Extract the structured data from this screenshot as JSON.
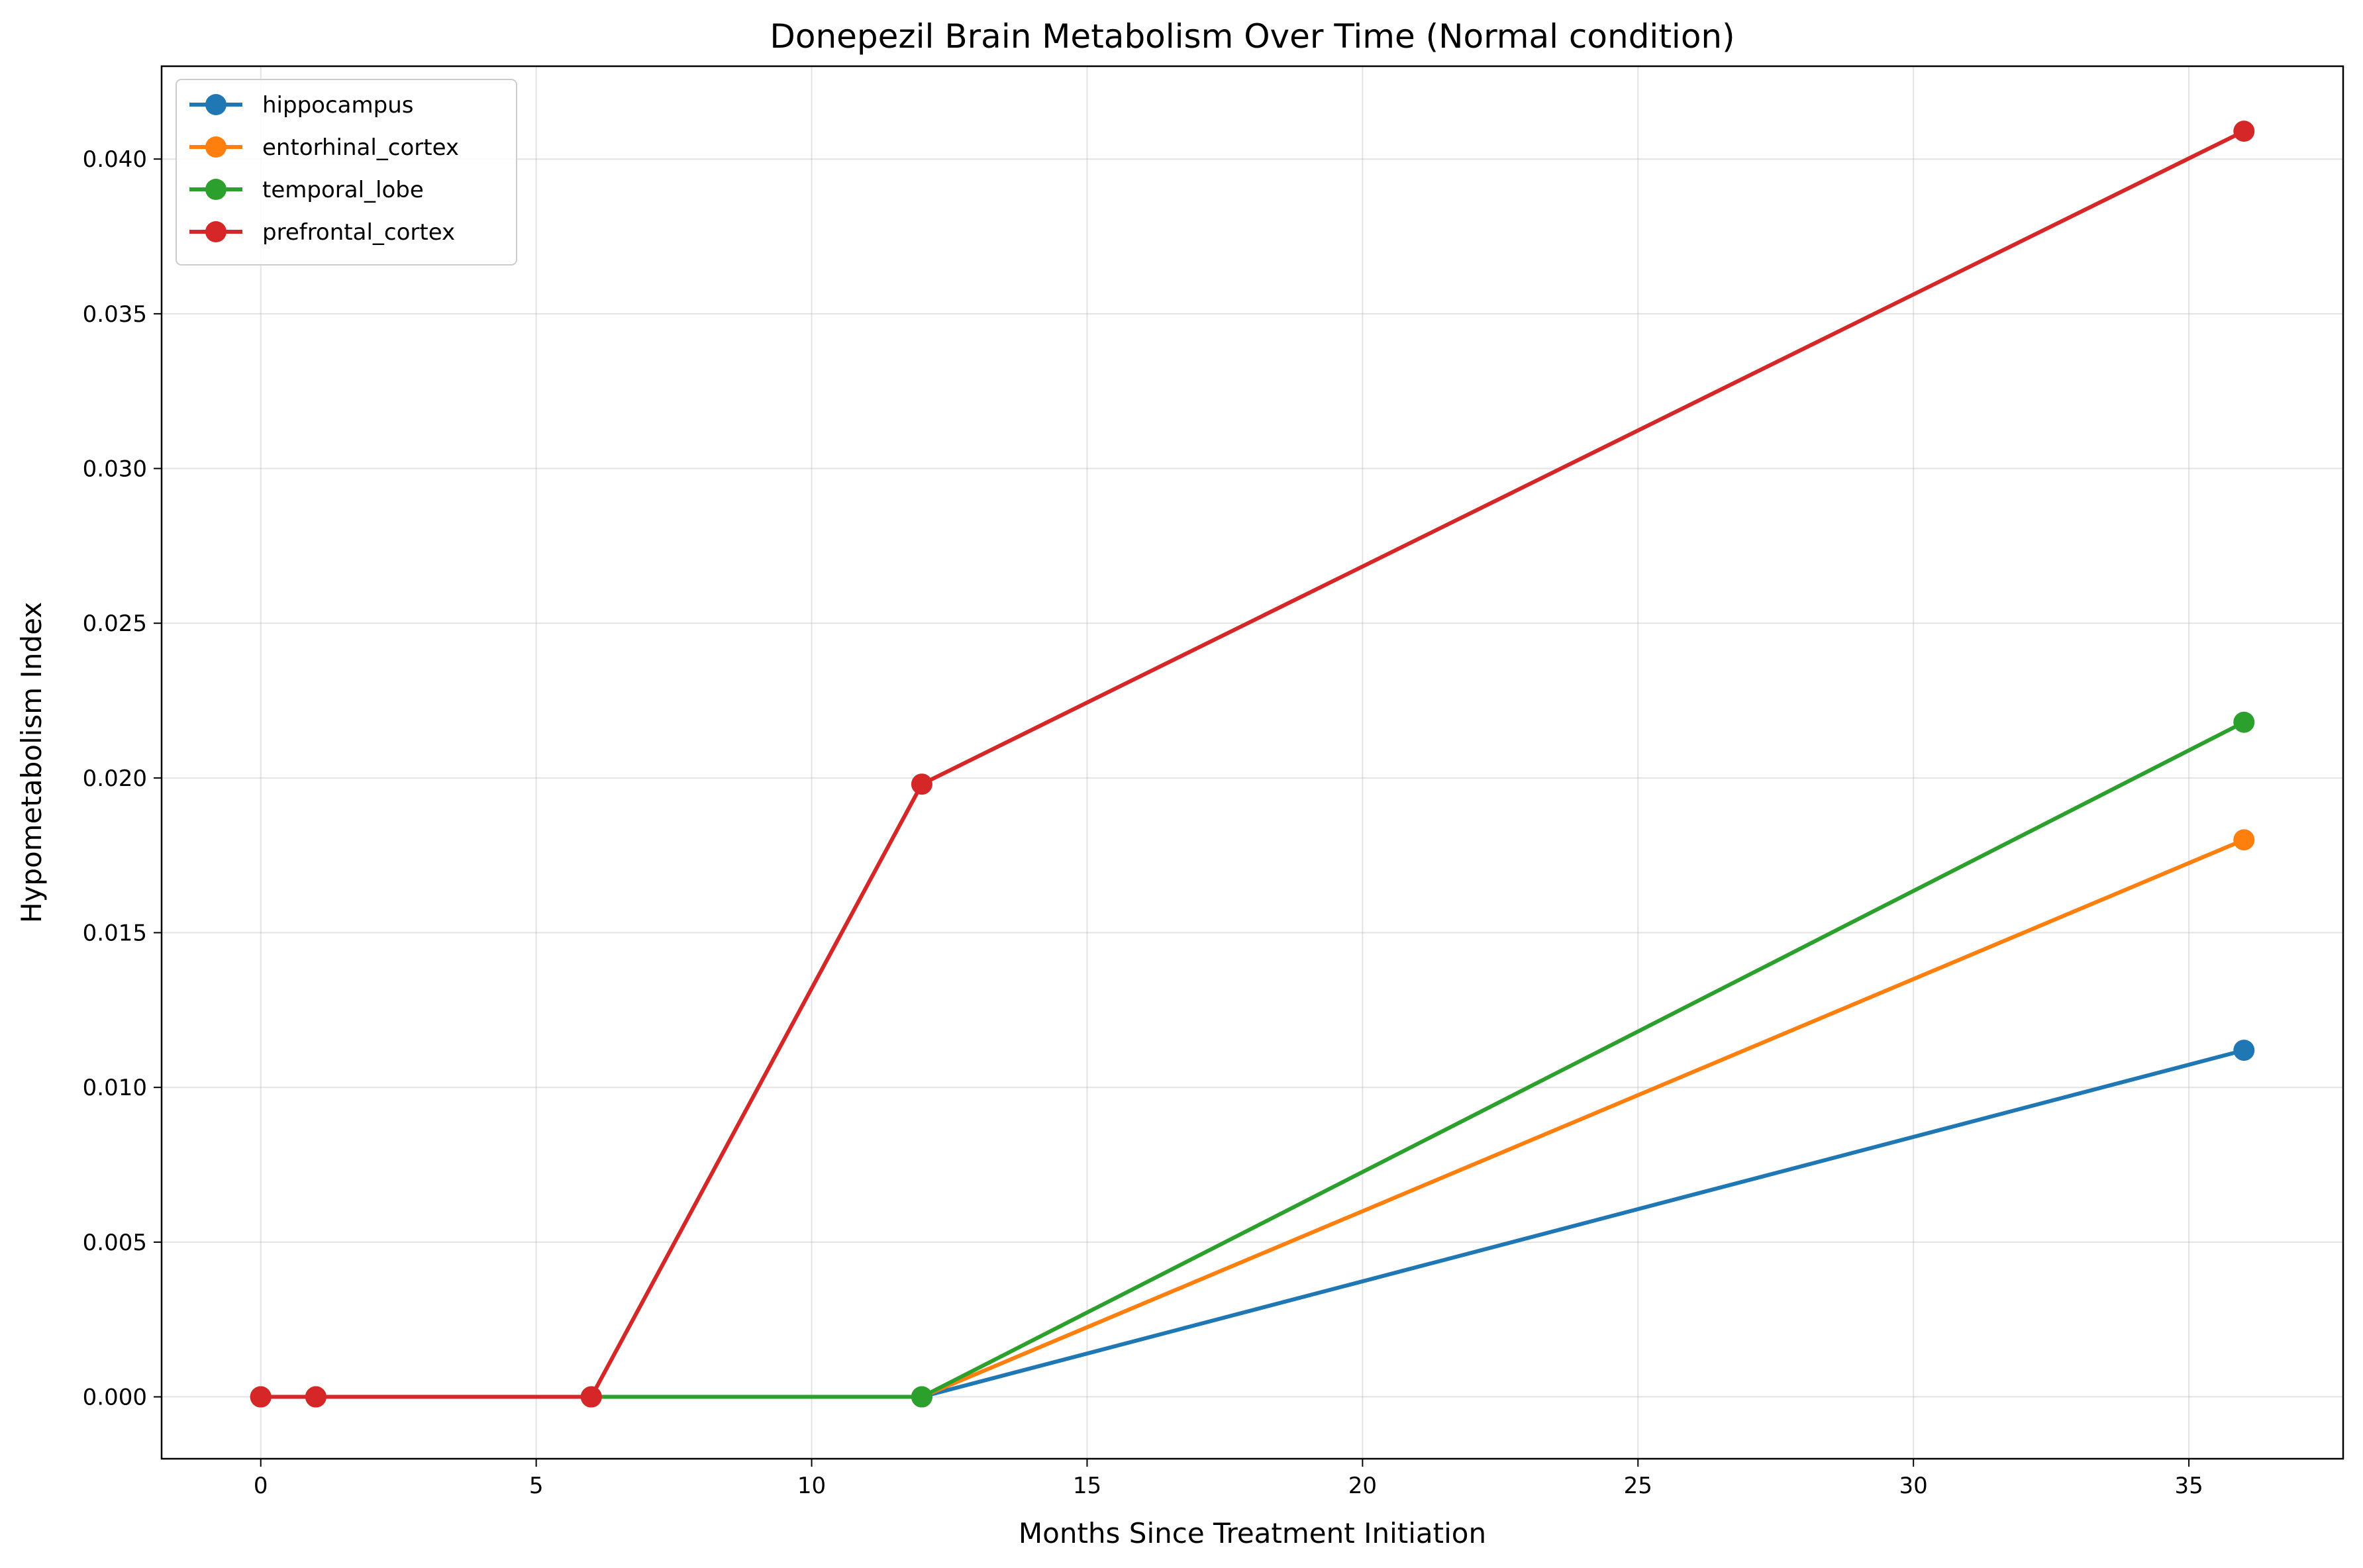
{
  "chart_data": {
    "type": "line",
    "title": "Donepezil Brain Metabolism Over Time (Normal condition)",
    "xlabel": "Months Since Treatment Initiation",
    "ylabel": "Hypometabolism Index",
    "x": [
      0,
      1,
      6,
      12,
      36
    ],
    "xlim": [
      -1.8,
      37.8
    ],
    "ylim": [
      -0.002,
      0.043
    ],
    "xticks": [
      0,
      5,
      10,
      15,
      20,
      25,
      30,
      35
    ],
    "xtick_labels": [
      "0",
      "5",
      "10",
      "15",
      "20",
      "25",
      "30",
      "35"
    ],
    "yticks": [
      0.0,
      0.005,
      0.01,
      0.015,
      0.02,
      0.025,
      0.03,
      0.035,
      0.04
    ],
    "ytick_labels": [
      "0.000",
      "0.005",
      "0.010",
      "0.015",
      "0.020",
      "0.025",
      "0.030",
      "0.035",
      "0.040"
    ],
    "grid": true,
    "legend_position": "top-left",
    "series": [
      {
        "name": "hippocampus",
        "color": "#1f77b4",
        "values": [
          0.0,
          0.0,
          0.0,
          0.0,
          0.0112
        ]
      },
      {
        "name": "entorhinal_cortex",
        "color": "#ff7f0e",
        "values": [
          0.0,
          0.0,
          0.0,
          0.0,
          0.018
        ]
      },
      {
        "name": "temporal_lobe",
        "color": "#2ca02c",
        "values": [
          0.0,
          0.0,
          0.0,
          0.0,
          0.0218
        ]
      },
      {
        "name": "prefrontal_cortex",
        "color": "#d62728",
        "values": [
          0.0,
          0.0,
          0.0,
          0.0198,
          0.0409
        ]
      }
    ]
  }
}
